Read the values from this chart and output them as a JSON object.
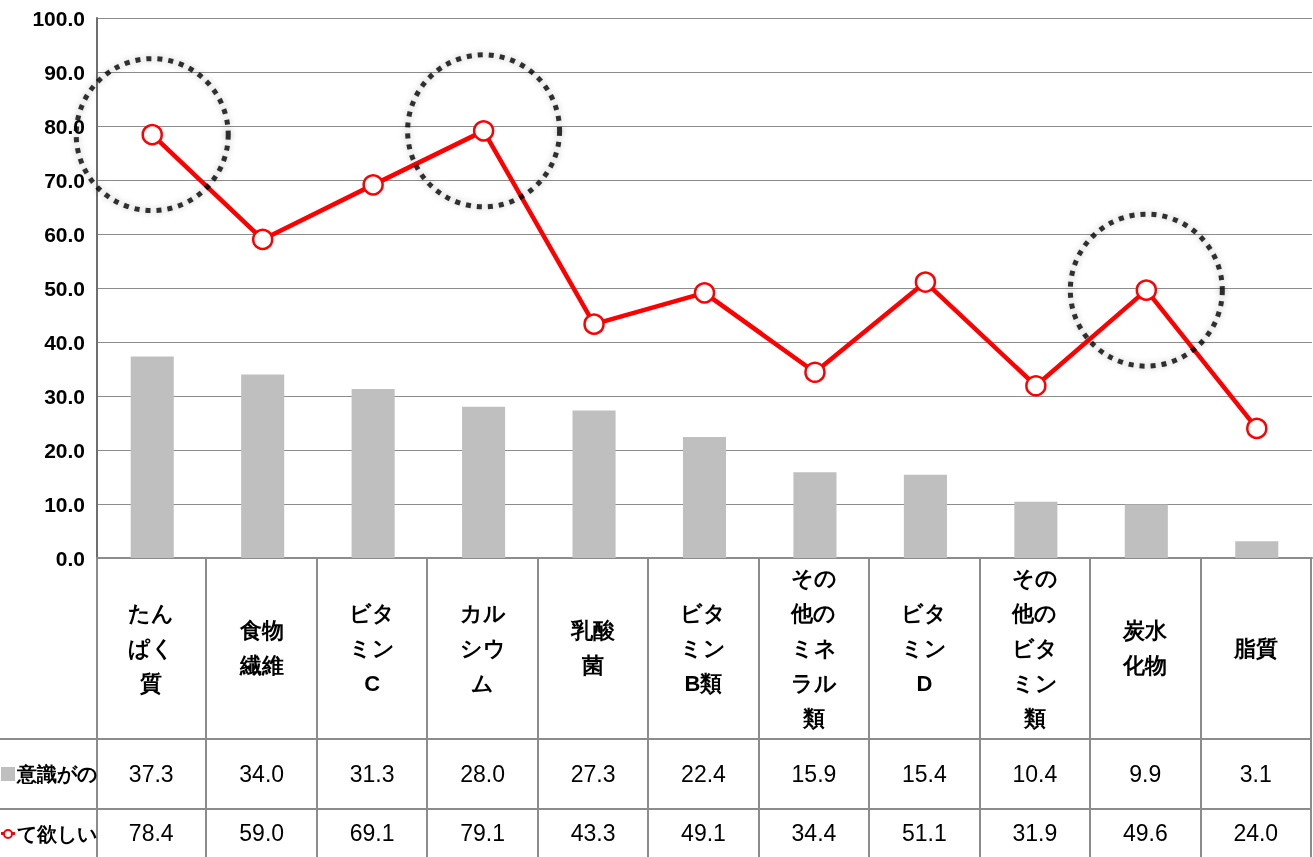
{
  "chart_data": {
    "type": "bar",
    "categories": [
      "たんぱく質",
      "食物繊維",
      "ビタミンC",
      "カルシウム",
      "乳酸菌",
      "ビタミンB類",
      "その他のミネラル類",
      "ビタミンD",
      "その他のビタミン類",
      "炭水化物",
      "脂質"
    ],
    "series": [
      {
        "name": "意識がの",
        "color": "#bfbfbf",
        "values": [
          37.3,
          34.0,
          31.3,
          28.0,
          27.3,
          22.4,
          15.9,
          15.4,
          10.4,
          9.9,
          3.1
        ],
        "value_labels": [
          "37.3",
          "34.0",
          "31.3",
          "28.0",
          "27.3",
          "22.4",
          "15.9",
          "15.4",
          "10.4",
          "9.9",
          "3.1"
        ]
      },
      {
        "name": "て欲しい",
        "type": "line",
        "color": "#ff0000",
        "values": [
          78.4,
          59.0,
          69.1,
          79.1,
          43.3,
          49.1,
          34.4,
          51.1,
          31.9,
          49.6,
          24.0
        ],
        "value_labels": [
          "78.4",
          "59.0",
          "69.1",
          "79.1",
          "43.3",
          "49.1",
          "34.4",
          "51.1",
          "31.9",
          "49.6",
          "24.0"
        ]
      },
      {
        "type": "scatter",
        "color": "#000000",
        "line_style": "dotted",
        "values": [
          78.4,
          null,
          null,
          79.1,
          null,
          null,
          null,
          null,
          null,
          49.6,
          null
        ]
      }
    ],
    "ylim": [
      0,
      100
    ],
    "yticks": [
      {
        "value": 0,
        "label": "0.0"
      },
      {
        "value": 10,
        "label": "10.0"
      },
      {
        "value": 20,
        "label": "20.0"
      },
      {
        "value": 30,
        "label": "30.0"
      },
      {
        "value": 40,
        "label": "40.0"
      },
      {
        "value": 50,
        "label": "50.0"
      },
      {
        "value": 60,
        "label": "60.0"
      },
      {
        "value": 70,
        "label": "70.0"
      },
      {
        "value": 80,
        "label": "80.0"
      },
      {
        "value": 90,
        "label": "90.0"
      },
      {
        "value": 100,
        "label": "100.0"
      }
    ],
    "grid": "y",
    "marker": "circle",
    "legend": "bottom left"
  }
}
